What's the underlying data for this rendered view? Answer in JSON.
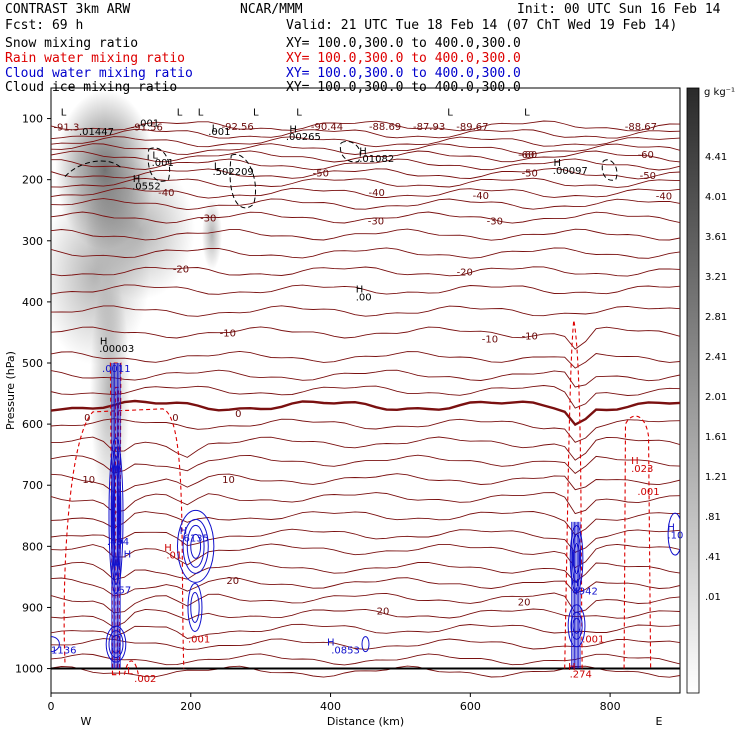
{
  "header": {
    "model": "CONTRAST  3km ARW",
    "forecast": "Fcst:    69 h",
    "org": "NCAR/MMM",
    "init": "Init: 00 UTC Sun 16 Feb 14",
    "valid": "Valid: 21 UTC Tue 18 Feb 14 (07 ChT Wed 19 Feb 14)"
  },
  "fields": [
    {
      "name": "Snow mixing ratio",
      "xy": "XY= 100.0,300.0 to 400.0,300.0",
      "color": "#000000"
    },
    {
      "name": "Rain water mixing ratio",
      "xy": "XY= 100.0,300.0 to 400.0,300.0",
      "color": "#dd0000"
    },
    {
      "name": "Cloud water mixing ratio",
      "xy": "XY= 100.0,300.0 to 400.0,300.0",
      "color": "#0000cc"
    },
    {
      "name": "Cloud ice mixing ratio",
      "xy": "XY= 100.0,300.0 to 400.0,300.0",
      "color": "#000000"
    }
  ],
  "colorbar": {
    "unit": "g kg⁻¹",
    "labels": [
      "4.41",
      "4.01",
      "3.61",
      "3.21",
      "2.81",
      "2.41",
      "2.01",
      "1.61",
      "1.21",
      ".81",
      ".41",
      ".01"
    ]
  },
  "chart_data": {
    "type": "cross-section",
    "xlabel": "Distance (km)",
    "ylabel": "Pressure (hPa)",
    "xlim": [
      0,
      900
    ],
    "ylim": [
      1040,
      50
    ],
    "x_ticks": [
      "0",
      "200",
      "400",
      "600",
      "800"
    ],
    "y_ticks": [
      "100",
      "200",
      "300",
      "400",
      "500",
      "600",
      "700",
      "800",
      "900",
      "1000"
    ],
    "x_ends": [
      "W",
      "E"
    ],
    "temperature_contours": [
      {
        "label": "-92.56",
        "x": 267,
        "p": 112
      },
      {
        "label": "-90.44",
        "x": 395,
        "p": 112
      },
      {
        "label": "-88.69",
        "x": 478,
        "p": 112
      },
      {
        "label": "-87.93",
        "x": 541,
        "p": 112
      },
      {
        "label": "-89.67",
        "x": 603,
        "p": 112
      },
      {
        "label": "-88.67",
        "x": 844,
        "p": 112
      },
      {
        "label": "-91.3",
        "x": 22,
        "p": 113
      },
      {
        "label": "-91.56",
        "x": 137,
        "p": 113
      },
      {
        "label": "-60",
        "x": 684,
        "p": 158
      },
      {
        "label": "-60",
        "x": 851,
        "p": 158
      },
      {
        "label": "-60",
        "x": 680,
        "p": 158
      },
      {
        "label": "-50",
        "x": 386,
        "p": 188
      },
      {
        "label": "-50",
        "x": 685,
        "p": 188
      },
      {
        "label": "-50",
        "x": 854,
        "p": 192
      },
      {
        "label": "-40",
        "x": 165,
        "p": 220
      },
      {
        "label": "-40",
        "x": 466,
        "p": 220
      },
      {
        "label": "-40",
        "x": 615,
        "p": 225
      },
      {
        "label": "-40",
        "x": 877,
        "p": 226
      },
      {
        "label": "-30",
        "x": 225,
        "p": 262
      },
      {
        "label": "-30",
        "x": 465,
        "p": 267
      },
      {
        "label": "-30",
        "x": 635,
        "p": 267
      },
      {
        "label": "-20",
        "x": 186,
        "p": 345
      },
      {
        "label": "-20",
        "x": 592,
        "p": 350
      },
      {
        "label": "-10",
        "x": 253,
        "p": 450
      },
      {
        "label": "-10",
        "x": 628,
        "p": 460
      },
      {
        "label": "-10",
        "x": 685,
        "p": 455
      },
      {
        "label": "0",
        "x": 52,
        "p": 588
      },
      {
        "label": "0",
        "x": 178,
        "p": 588
      },
      {
        "label": "0",
        "x": 268,
        "p": 582
      },
      {
        "label": "10",
        "x": 54,
        "p": 690
      },
      {
        "label": "10",
        "x": 254,
        "p": 690
      },
      {
        "label": "20",
        "x": 260,
        "p": 855
      },
      {
        "label": "20",
        "x": 475,
        "p": 905
      },
      {
        "label": "20",
        "x": 677,
        "p": 890
      }
    ],
    "annotations": [
      {
        "text": ".01447",
        "x": 40,
        "p": 127
      },
      {
        "text": ".001",
        "x": 123,
        "p": 113
      },
      {
        "text": "L",
        "x": 14,
        "p": 95
      },
      {
        "text": "L",
        "x": 180,
        "p": 95
      },
      {
        "text": "L",
        "x": 210,
        "p": 95
      },
      {
        "text": "L",
        "x": 289,
        "p": 95
      },
      {
        "text": "L",
        "x": 351,
        "p": 95
      },
      {
        "text": "L",
        "x": 567,
        "p": 95
      },
      {
        "text": "L",
        "x": 677,
        "p": 95
      },
      {
        "text": "H",
        "x": 341,
        "p": 123
      },
      {
        "text": ".00265",
        "x": 336,
        "p": 135
      },
      {
        "text": ".001",
        "x": 225,
        "p": 127
      },
      {
        "text": "L",
        "x": 230,
        "p": 121
      },
      {
        "text": "H",
        "x": 441,
        "p": 159
      },
      {
        "text": ".01082",
        "x": 441,
        "p": 171
      },
      {
        "text": ".001",
        "x": 144,
        "p": 178
      },
      {
        "text": "L",
        "x": 145,
        "p": 165
      },
      {
        "text": "L",
        "x": 233,
        "p": 183
      },
      {
        "text": ".502209",
        "x": 231,
        "p": 192
      },
      {
        "text": "H",
        "x": 719,
        "p": 178
      },
      {
        "text": ".00097",
        "x": 718,
        "p": 191
      },
      {
        "text": "H",
        "x": 117,
        "p": 204
      },
      {
        "text": ".0552",
        "x": 116,
        "p": 216
      },
      {
        "text": "H",
        "x": 436,
        "p": 385
      },
      {
        "text": ".00",
        "x": 436,
        "p": 398
      },
      {
        "text": "H",
        "x": 70,
        "p": 470
      },
      {
        "text": ".00003",
        "x": 69,
        "p": 482
      },
      {
        "text": ".0011",
        "x": 73,
        "p": 515
      },
      {
        "text": "H",
        "x": 830,
        "p": 665
      },
      {
        "text": ".023",
        "x": 830,
        "p": 678
      },
      {
        "text": ".001",
        "x": 839,
        "p": 716
      },
      {
        "text": "H",
        "x": 882,
        "p": 774
      },
      {
        "text": ".10",
        "x": 882,
        "p": 787
      },
      {
        "text": ".6135",
        "x": 185,
        "p": 792
      },
      {
        "text": "H",
        "x": 184,
        "p": 780
      },
      {
        "text": "H",
        "x": 162,
        "p": 808
      },
      {
        "text": ".01",
        "x": 165,
        "p": 820
      },
      {
        "text": ".494",
        "x": 80,
        "p": 798
      },
      {
        "text": "H",
        "x": 104,
        "p": 818
      },
      {
        "text": ".57",
        "x": 92,
        "p": 877
      },
      {
        "text": "H",
        "x": 745,
        "p": 865
      },
      {
        "text": "4942",
        "x": 746,
        "p": 879
      },
      {
        "text": ".001",
        "x": 196,
        "p": 957
      },
      {
        "text": ".001",
        "x": 760,
        "p": 957
      },
      {
        "text": "H",
        "x": 395,
        "p": 962
      },
      {
        "text": ".0853",
        "x": 401,
        "p": 975
      },
      {
        "text": "1136",
        "x": 0,
        "p": 975
      },
      {
        "text": "H",
        "x": 740,
        "p": 1002
      },
      {
        "text": ".274",
        "x": 742,
        "p": 1015
      },
      {
        "text": "L",
        "x": 109,
        "p": 1009
      },
      {
        "text": ".002",
        "x": 119,
        "p": 1022
      }
    ]
  }
}
